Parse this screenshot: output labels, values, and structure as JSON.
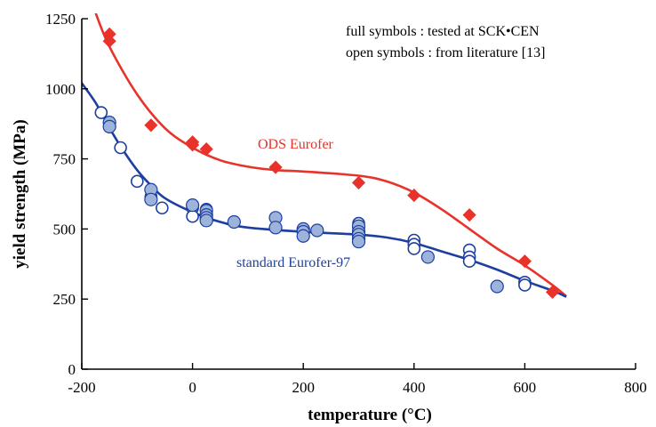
{
  "chart_data": {
    "type": "scatter",
    "xlabel": "temperature (°C)",
    "ylabel": "yield strength (MPa)",
    "xlim": [
      -200,
      800
    ],
    "ylim": [
      0,
      1250
    ],
    "xticks": [
      -200,
      0,
      200,
      400,
      600,
      800
    ],
    "yticks": [
      0,
      250,
      500,
      750,
      1000,
      1250
    ],
    "grid": false,
    "annotations": [
      "full symbols : tested at SCK•CEN",
      "open symbols : from literature [13]"
    ],
    "colors": {
      "ods": "#e8322a",
      "standard": "#1c3fa0",
      "standard_fill": "#9db3d9"
    },
    "series": [
      {
        "name": "ODS Eurofer",
        "marker": "filled-diamond",
        "points": [
          [
            -150,
            1195
          ],
          [
            -150,
            1170
          ],
          [
            -75,
            870
          ],
          [
            0,
            810
          ],
          [
            0,
            800
          ],
          [
            25,
            785
          ],
          [
            150,
            720
          ],
          [
            300,
            665
          ],
          [
            400,
            620
          ],
          [
            500,
            550
          ],
          [
            600,
            385
          ],
          [
            650,
            275
          ]
        ],
        "fit": [
          [
            -175,
            1270
          ],
          [
            -150,
            1150
          ],
          [
            -100,
            980
          ],
          [
            -50,
            860
          ],
          [
            0,
            790
          ],
          [
            50,
            745
          ],
          [
            100,
            722
          ],
          [
            150,
            710
          ],
          [
            200,
            705
          ],
          [
            300,
            690
          ],
          [
            350,
            670
          ],
          [
            400,
            630
          ],
          [
            450,
            570
          ],
          [
            500,
            500
          ],
          [
            550,
            430
          ],
          [
            600,
            370
          ],
          [
            650,
            300
          ],
          [
            675,
            260
          ]
        ]
      },
      {
        "name": "standard Eurofer-97",
        "marker": "circle",
        "filled_points": [
          [
            -150,
            880
          ],
          [
            -150,
            865
          ],
          [
            -75,
            640
          ],
          [
            -75,
            605
          ],
          [
            0,
            585
          ],
          [
            25,
            565
          ],
          [
            25,
            550
          ],
          [
            25,
            540
          ],
          [
            25,
            530
          ],
          [
            75,
            525
          ],
          [
            150,
            540
          ],
          [
            150,
            505
          ],
          [
            200,
            500
          ],
          [
            200,
            490
          ],
          [
            200,
            475
          ],
          [
            225,
            495
          ],
          [
            300,
            510
          ],
          [
            300,
            490
          ],
          [
            300,
            480
          ],
          [
            300,
            465
          ],
          [
            300,
            455
          ],
          [
            425,
            400
          ],
          [
            550,
            295
          ]
        ],
        "open_points": [
          [
            -165,
            915
          ],
          [
            -150,
            880
          ],
          [
            -130,
            790
          ],
          [
            -100,
            670
          ],
          [
            -75,
            615
          ],
          [
            -55,
            575
          ],
          [
            0,
            575
          ],
          [
            0,
            545
          ],
          [
            25,
            570
          ],
          [
            25,
            555
          ],
          [
            300,
            520
          ],
          [
            300,
            500
          ],
          [
            300,
            470
          ],
          [
            400,
            460
          ],
          [
            400,
            445
          ],
          [
            400,
            430
          ],
          [
            500,
            425
          ],
          [
            500,
            400
          ],
          [
            500,
            385
          ],
          [
            600,
            310
          ],
          [
            600,
            300
          ]
        ],
        "fit": [
          [
            -200,
            1020
          ],
          [
            -175,
            950
          ],
          [
            -150,
            860
          ],
          [
            -125,
            780
          ],
          [
            -100,
            710
          ],
          [
            -75,
            655
          ],
          [
            -50,
            610
          ],
          [
            0,
            560
          ],
          [
            50,
            525
          ],
          [
            100,
            505
          ],
          [
            200,
            490
          ],
          [
            300,
            480
          ],
          [
            350,
            470
          ],
          [
            400,
            450
          ],
          [
            450,
            420
          ],
          [
            500,
            390
          ],
          [
            550,
            355
          ],
          [
            600,
            315
          ],
          [
            650,
            280
          ],
          [
            675,
            258
          ]
        ]
      }
    ]
  }
}
